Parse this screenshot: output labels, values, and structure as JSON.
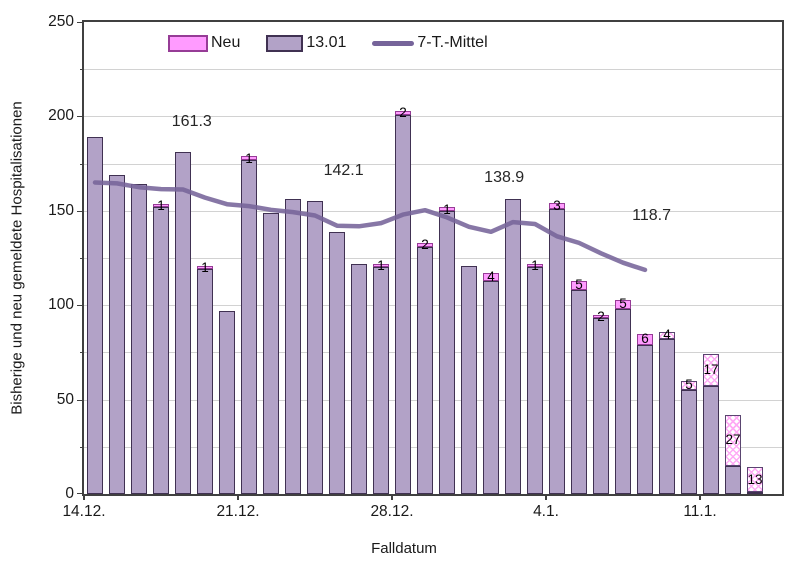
{
  "legend": {
    "items": [
      {
        "label": "Neu",
        "swatch": "pink-box"
      },
      {
        "label": "13.01",
        "swatch": "purple-box"
      },
      {
        "label": "7-T.-Mittel",
        "swatch": "line"
      }
    ]
  },
  "y_axis": {
    "title": "Bisherige und neu gemeldete Hospitalisationen",
    "ticks": [
      0,
      50,
      100,
      150,
      200,
      250
    ],
    "minor_step": 25,
    "max": 250
  },
  "x_axis": {
    "title": "Falldatum",
    "tick_labels": [
      "14.12.",
      "21.12.",
      "28.12.",
      "4.1.",
      "11.1."
    ],
    "tick_indices": [
      0,
      7,
      14,
      21,
      28
    ]
  },
  "colors": {
    "bar_fill": "#b2a2c7",
    "bar_border": "#403152",
    "neu_fill": "#ff9bff",
    "neu_border": "#963c96",
    "hatch_border": "#5a4570",
    "line_color": "#76649a",
    "grid_color": "#d2d2d2",
    "axis_color": "#404040"
  },
  "chart_data": {
    "type": "bar",
    "stacked": true,
    "title": "",
    "xlabel": "Falldatum",
    "ylabel": "Bisherige und neu gemeldete Hospitalisationen",
    "ylim": [
      0,
      250
    ],
    "grid_step": 25,
    "legend_position": "top",
    "categories": [
      "14.12.",
      "15.12.",
      "16.12.",
      "17.12.",
      "18.12.",
      "19.12.",
      "20.12.",
      "21.12.",
      "22.12.",
      "23.12.",
      "24.12.",
      "25.12.",
      "26.12.",
      "27.12.",
      "28.12.",
      "29.12.",
      "30.12.",
      "31.12.",
      "1.1.",
      "2.1.",
      "3.1.",
      "4.1.",
      "5.1.",
      "6.1.",
      "7.1.",
      "8.1.",
      "9.1.",
      "10.1.",
      "11.1.",
      "12.1.",
      "13.1."
    ],
    "series": [
      {
        "name": "13.01",
        "type": "bar",
        "values": [
          189,
          169,
          164,
          152,
          181,
          119,
          97,
          177,
          149,
          156,
          155,
          139,
          122,
          120,
          201,
          131,
          150,
          121,
          113,
          156,
          120,
          151,
          108,
          93,
          98,
          79,
          82,
          55,
          57,
          15,
          1
        ]
      },
      {
        "name": "Neu",
        "type": "bar-stacked-top",
        "values": [
          0,
          0,
          0,
          1,
          0,
          1,
          0,
          1,
          0,
          0,
          0,
          0,
          0,
          1,
          2,
          2,
          1,
          0,
          4,
          0,
          1,
          3,
          5,
          2,
          5,
          6,
          4,
          5,
          17,
          27,
          13
        ],
        "hatched_from_index": 26
      },
      {
        "name": "7-T.-Mittel",
        "type": "line",
        "values": [
          165,
          164.5,
          162.5,
          161.5,
          161.3,
          157,
          153.5,
          152.5,
          150.5,
          149.3,
          147.5,
          142.1,
          141.8,
          143.5,
          148,
          150.3,
          146.5,
          141.5,
          138.9,
          144,
          143,
          136.5,
          133,
          127.5,
          122.5,
          118.7,
          null,
          null,
          null,
          null,
          null
        ]
      }
    ],
    "bar_labels": [
      null,
      null,
      null,
      "1",
      null,
      "1",
      null,
      "1",
      null,
      null,
      null,
      null,
      null,
      "1",
      "2",
      "2",
      "1",
      null,
      "4",
      null,
      "1",
      "3",
      "5",
      "2",
      "5",
      "6",
      "4",
      "5",
      "17",
      "27",
      "13"
    ],
    "annotations": [
      {
        "text": "161.3",
        "day": 4.4,
        "value": 197
      },
      {
        "text": "142.1",
        "day": 11.3,
        "value": 171
      },
      {
        "text": "138.9",
        "day": 18.6,
        "value": 167.5
      },
      {
        "text": "118.7",
        "day": 25.3,
        "value": 147
      }
    ]
  }
}
